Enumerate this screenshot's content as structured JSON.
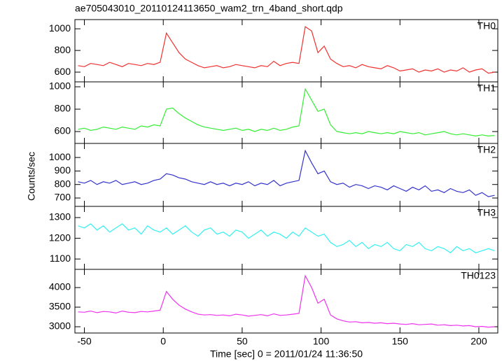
{
  "chart_data": [
    {
      "type": "line",
      "title": "ae705043010_20110124113650_wam2_trn_4band_short.qdp",
      "y_label": "Counts/sec",
      "x": [
        -54,
        -50,
        -46,
        -42,
        -38,
        -34,
        -30,
        -26,
        -22,
        -18,
        -14,
        -10,
        -6,
        -2,
        2,
        6,
        10,
        14,
        18,
        22,
        26,
        30,
        34,
        38,
        42,
        46,
        50,
        54,
        58,
        62,
        66,
        70,
        74,
        78,
        82,
        86,
        90,
        94,
        98,
        102,
        106,
        110,
        114,
        118,
        122,
        126,
        130,
        134,
        138,
        142,
        146,
        150,
        154,
        158,
        162,
        166,
        170,
        174,
        178,
        182,
        186,
        190,
        194,
        198,
        202,
        206,
        210
      ],
      "series": [
        {
          "name": "TH0",
          "color": "#f03030",
          "values": [
            660,
            650,
            680,
            670,
            660,
            690,
            670,
            650,
            680,
            670,
            660,
            680,
            670,
            690,
            960,
            870,
            780,
            720,
            690,
            660,
            640,
            650,
            660,
            640,
            650,
            670,
            660,
            650,
            640,
            660,
            650,
            700,
            660,
            680,
            690,
            680,
            1020,
            980,
            780,
            840,
            720,
            680,
            650,
            660,
            640,
            670,
            650,
            640,
            630,
            660,
            640,
            610,
            620,
            630,
            600,
            620,
            610,
            630,
            600,
            620,
            610,
            640,
            600,
            620,
            630,
            590,
            600
          ]
        }
      ],
      "xlim": [
        -56,
        212
      ],
      "ylim": [
        510,
        1085
      ],
      "yticks": [
        600,
        800,
        1000
      ]
    },
    {
      "type": "line",
      "x": [
        -54,
        -50,
        -46,
        -42,
        -38,
        -34,
        -30,
        -26,
        -22,
        -18,
        -14,
        -10,
        -6,
        -2,
        2,
        6,
        10,
        14,
        18,
        22,
        26,
        30,
        34,
        38,
        42,
        46,
        50,
        54,
        58,
        62,
        66,
        70,
        74,
        78,
        82,
        86,
        90,
        94,
        98,
        102,
        106,
        110,
        114,
        118,
        122,
        126,
        130,
        134,
        138,
        142,
        146,
        150,
        154,
        158,
        162,
        166,
        170,
        174,
        178,
        182,
        186,
        190,
        194,
        198,
        202,
        206,
        210
      ],
      "series": [
        {
          "name": "TH1",
          "color": "#33ee33",
          "values": [
            620,
            630,
            610,
            620,
            640,
            630,
            620,
            640,
            630,
            620,
            650,
            640,
            660,
            650,
            800,
            810,
            760,
            720,
            690,
            660,
            640,
            630,
            620,
            610,
            620,
            630,
            610,
            620,
            600,
            620,
            610,
            630,
            610,
            620,
            640,
            650,
            980,
            880,
            780,
            800,
            660,
            600,
            590,
            580,
            590,
            580,
            600,
            590,
            580,
            590,
            580,
            600,
            590,
            580,
            590,
            570,
            580,
            590,
            600,
            580,
            570,
            580,
            570,
            560,
            570,
            560,
            565
          ]
        }
      ],
      "xlim": [
        -56,
        212
      ],
      "ylim": [
        494,
        1044
      ],
      "yticks": [
        600,
        800,
        1000
      ]
    },
    {
      "type": "line",
      "x": [
        -54,
        -50,
        -46,
        -42,
        -38,
        -34,
        -30,
        -26,
        -22,
        -18,
        -14,
        -10,
        -6,
        -2,
        2,
        6,
        10,
        14,
        18,
        22,
        26,
        30,
        34,
        38,
        42,
        46,
        50,
        54,
        58,
        62,
        66,
        70,
        74,
        78,
        82,
        86,
        90,
        94,
        98,
        102,
        106,
        110,
        114,
        118,
        122,
        126,
        130,
        134,
        138,
        142,
        146,
        150,
        154,
        158,
        162,
        166,
        170,
        174,
        178,
        182,
        186,
        190,
        194,
        198,
        202,
        206,
        210
      ],
      "series": [
        {
          "name": "TH2",
          "color": "#3333cc",
          "values": [
            820,
            810,
            830,
            800,
            820,
            810,
            830,
            800,
            810,
            820,
            800,
            810,
            830,
            840,
            880,
            870,
            850,
            840,
            820,
            810,
            800,
            820,
            800,
            810,
            790,
            810,
            800,
            820,
            790,
            810,
            800,
            830,
            790,
            810,
            820,
            830,
            1050,
            960,
            880,
            900,
            820,
            800,
            810,
            780,
            800,
            790,
            770,
            790,
            780,
            760,
            790,
            770,
            750,
            780,
            760,
            790,
            750,
            760,
            740,
            770,
            750,
            740,
            760,
            720,
            740,
            710,
            720
          ]
        }
      ],
      "xlim": [
        -56,
        212
      ],
      "ylim": [
        638,
        1104
      ],
      "yticks": [
        700,
        800,
        900,
        1000
      ]
    },
    {
      "type": "line",
      "x": [
        -54,
        -50,
        -46,
        -42,
        -38,
        -34,
        -30,
        -26,
        -22,
        -18,
        -14,
        -10,
        -6,
        -2,
        2,
        6,
        10,
        14,
        18,
        22,
        26,
        30,
        34,
        38,
        42,
        46,
        50,
        54,
        58,
        62,
        66,
        70,
        74,
        78,
        82,
        86,
        90,
        94,
        98,
        102,
        106,
        110,
        114,
        118,
        122,
        126,
        130,
        134,
        138,
        142,
        146,
        150,
        154,
        158,
        162,
        166,
        170,
        174,
        178,
        182,
        186,
        190,
        194,
        198,
        202,
        206,
        210
      ],
      "series": [
        {
          "name": "TH3",
          "color": "#33f0f0",
          "values": [
            1260,
            1250,
            1270,
            1240,
            1260,
            1230,
            1250,
            1270,
            1240,
            1250,
            1220,
            1260,
            1240,
            1230,
            1250,
            1220,
            1240,
            1260,
            1230,
            1210,
            1240,
            1250,
            1220,
            1230,
            1210,
            1240,
            1230,
            1200,
            1220,
            1240,
            1210,
            1230,
            1220,
            1200,
            1230,
            1210,
            1250,
            1230,
            1210,
            1220,
            1180,
            1160,
            1170,
            1190,
            1160,
            1180,
            1150,
            1170,
            1160,
            1180,
            1150,
            1140,
            1170,
            1160,
            1180,
            1150,
            1140,
            1160,
            1150,
            1130,
            1160,
            1140,
            1150,
            1130,
            1140,
            1150,
            1140
          ]
        }
      ],
      "xlim": [
        -56,
        212
      ],
      "ylim": [
        1050,
        1354
      ],
      "yticks": [
        1100,
        1200,
        1300
      ]
    },
    {
      "type": "line",
      "x_label": "Time [sec] 0 = 2011/01/24 11:36:50",
      "x": [
        -54,
        -50,
        -46,
        -42,
        -38,
        -34,
        -30,
        -26,
        -22,
        -18,
        -14,
        -10,
        -6,
        -2,
        2,
        6,
        10,
        14,
        18,
        22,
        26,
        30,
        34,
        38,
        42,
        46,
        50,
        54,
        58,
        62,
        66,
        70,
        74,
        78,
        82,
        86,
        90,
        94,
        98,
        102,
        106,
        110,
        114,
        118,
        122,
        126,
        130,
        134,
        138,
        142,
        146,
        150,
        154,
        158,
        162,
        166,
        170,
        174,
        178,
        182,
        186,
        190,
        194,
        198,
        202,
        206,
        210
      ],
      "series": [
        {
          "name": "TH0123",
          "color": "#ee33ee",
          "values": [
            3380,
            3370,
            3400,
            3360,
            3390,
            3380,
            3350,
            3400,
            3370,
            3360,
            3390,
            3380,
            3400,
            3420,
            3900,
            3700,
            3550,
            3450,
            3380,
            3320,
            3300,
            3310,
            3290,
            3300,
            3280,
            3320,
            3300,
            3270,
            3290,
            3310,
            3280,
            3330,
            3290,
            3300,
            3320,
            3340,
            4300,
            4000,
            3600,
            3700,
            3300,
            3200,
            3150,
            3120,
            3130,
            3100,
            3110,
            3090,
            3100,
            3080,
            3090,
            3070,
            3060,
            3080,
            3050,
            3060,
            3070,
            3040,
            3050,
            3030,
            3040,
            3020,
            3030,
            3000,
            3010,
            2990,
            3000
          ]
        }
      ],
      "xlim": [
        -56,
        212
      ],
      "ylim": [
        2840,
        4465
      ],
      "yticks": [
        3000,
        3500,
        4000
      ],
      "xticks": [
        -50,
        0,
        50,
        100,
        150,
        200
      ]
    }
  ]
}
